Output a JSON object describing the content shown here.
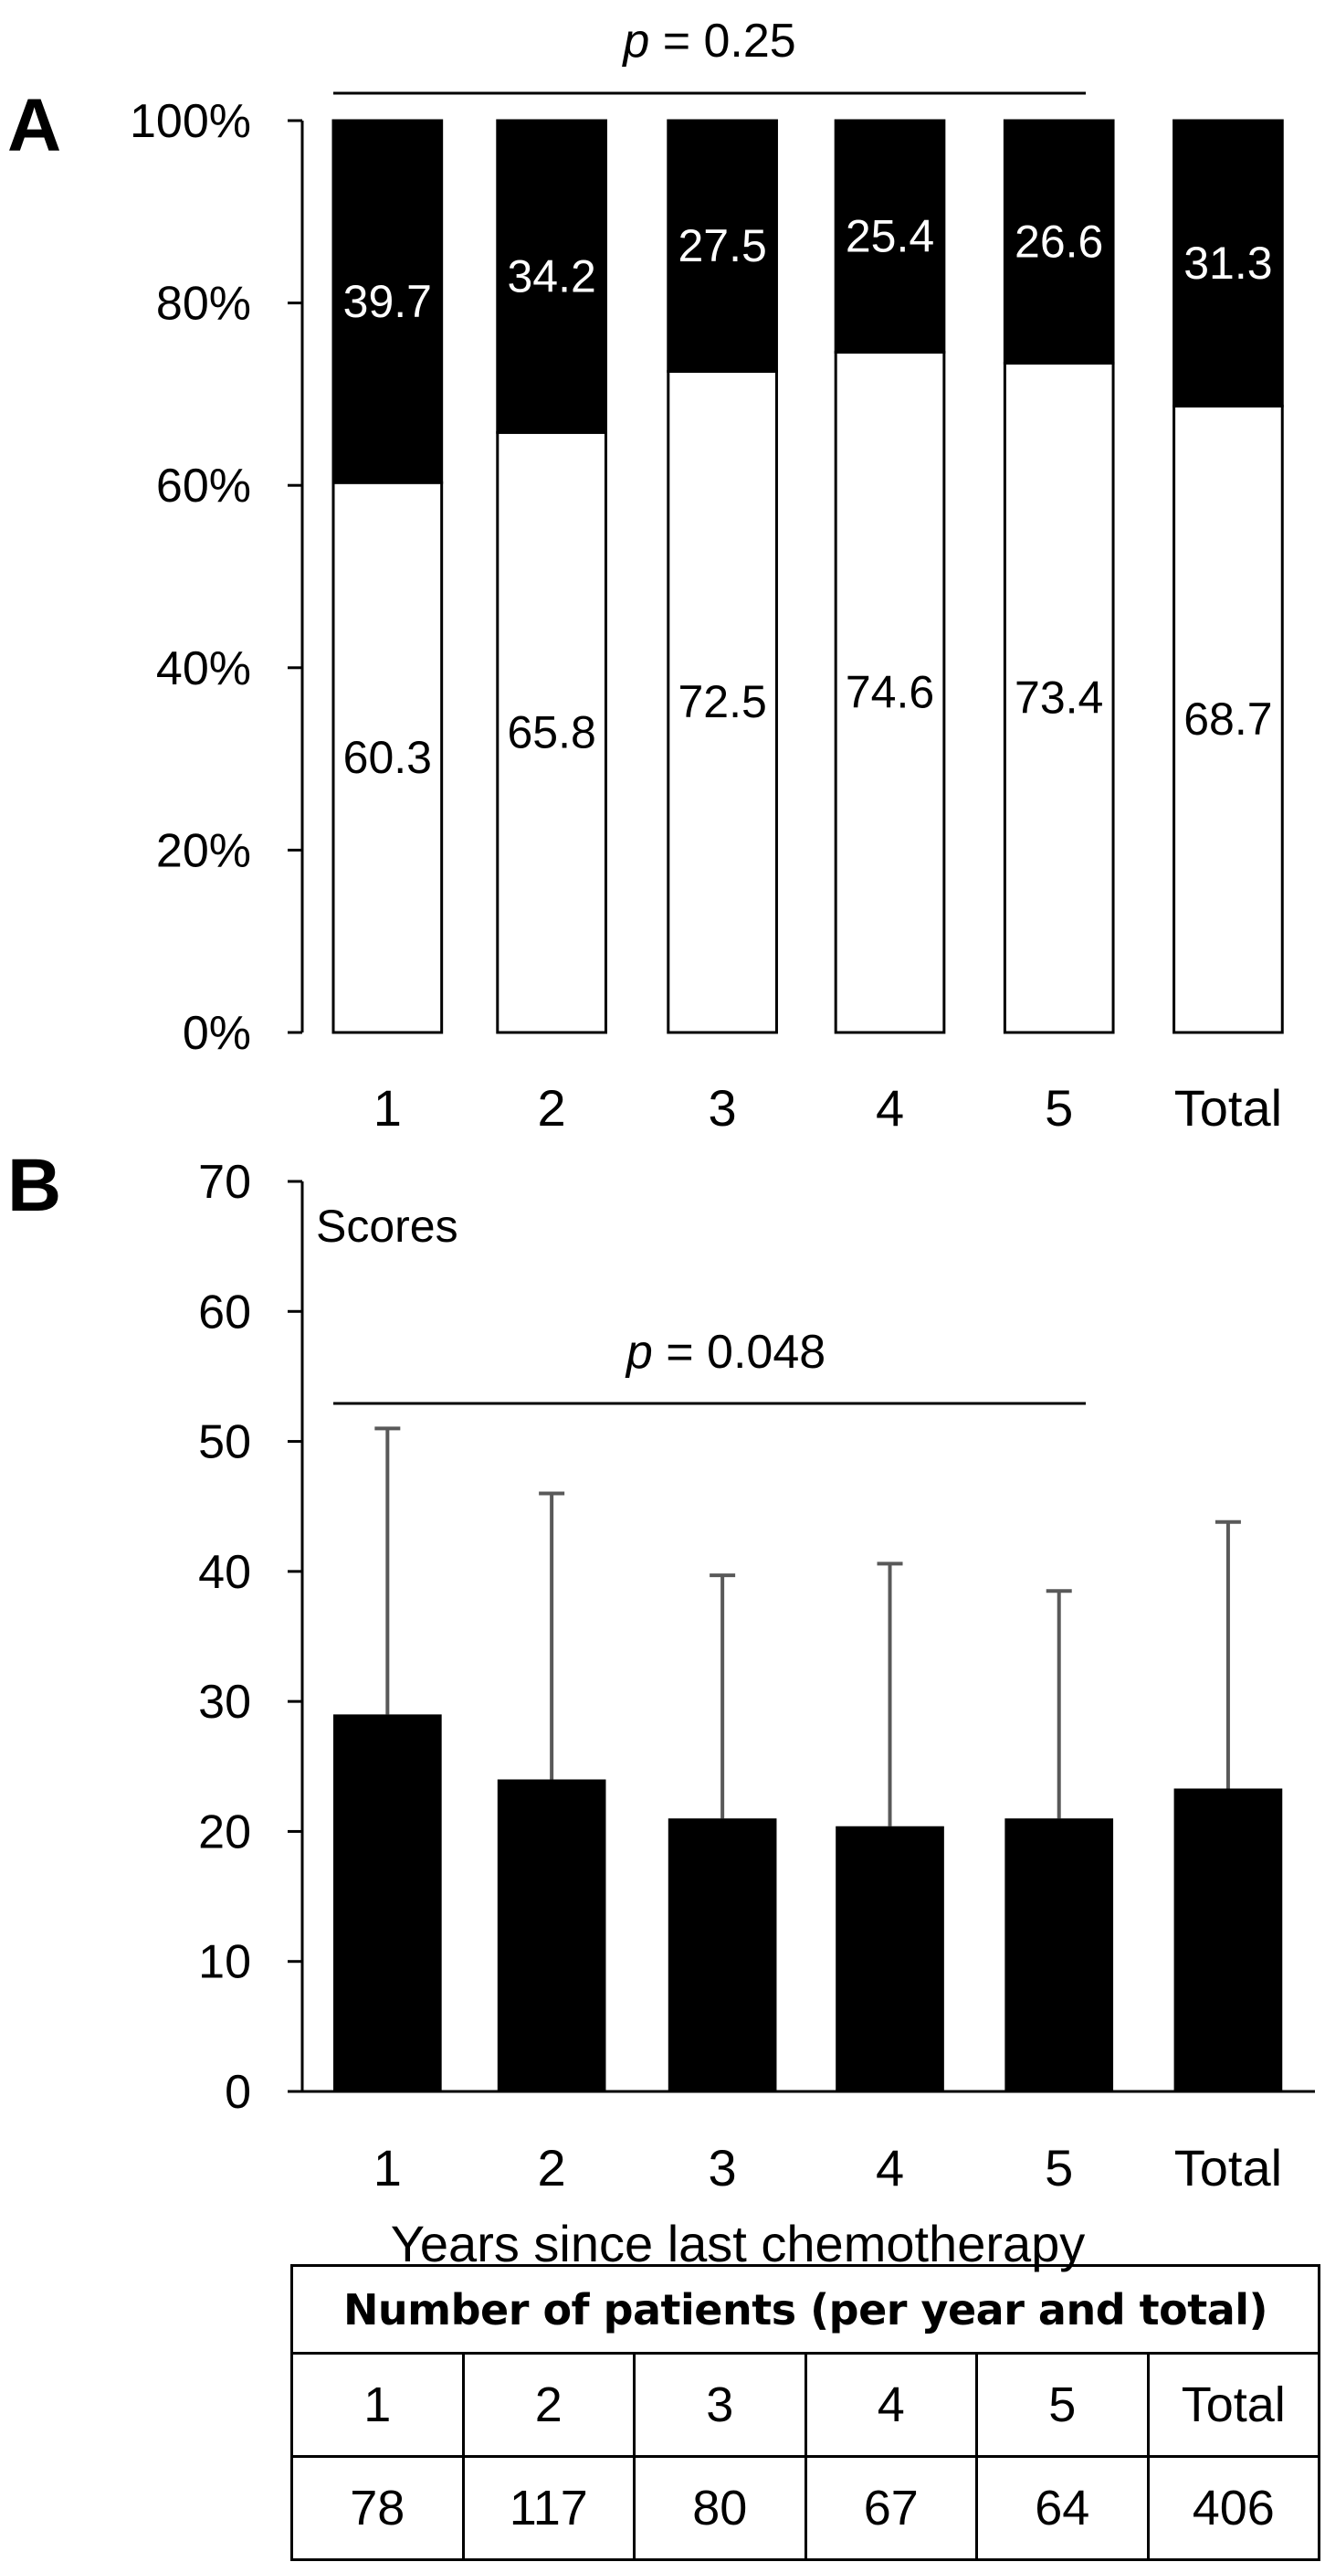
{
  "panel_a": {
    "letter": "A"
  },
  "panel_b": {
    "letter": "B"
  },
  "chart_data": [
    {
      "type": "bar",
      "stacked": true,
      "categories": [
        "1",
        "2",
        "3",
        "4",
        "5",
        "Total"
      ],
      "series": [
        {
          "name": "lower (white)",
          "color": "#ffffff",
          "values": [
            60.3,
            65.8,
            72.5,
            74.6,
            73.4,
            68.7
          ],
          "labels": [
            "60.3",
            "65.8",
            "72.5",
            "74.6",
            "73.4",
            "68.7"
          ]
        },
        {
          "name": "upper (black)",
          "color": "#000000",
          "values": [
            39.7,
            34.2,
            27.5,
            25.4,
            26.6,
            31.3
          ],
          "labels": [
            "39.7",
            "34.2",
            "27.5",
            "25.4",
            "26.6",
            "31.3"
          ]
        }
      ],
      "ylim": [
        0,
        100
      ],
      "yticks": [
        "0%",
        "20%",
        "40%",
        "60%",
        "80%",
        "100%"
      ],
      "title": "",
      "xlabel": "",
      "ylabel": "",
      "annotation": {
        "p_symbol": "p",
        "p_text": " = 0.25",
        "from_category": "1",
        "to_category": "5"
      }
    },
    {
      "type": "bar",
      "categories": [
        "1",
        "2",
        "3",
        "4",
        "5",
        "Total"
      ],
      "values": [
        29,
        24,
        21,
        20.4,
        21,
        23.3
      ],
      "error_upper": [
        22,
        22,
        18.7,
        20.2,
        17.5,
        20.5
      ],
      "ylim": [
        0,
        70
      ],
      "yticks": [
        "0",
        "10",
        "20",
        "30",
        "40",
        "50",
        "60",
        "70"
      ],
      "ylabel": "Scores",
      "xlabel": "Years since last chemotherapy",
      "annotation": {
        "p_symbol": "p",
        "p_text": " = 0.048",
        "from_category": "1",
        "to_category": "5"
      },
      "bar_color": "#000000",
      "error_color": "#595959"
    }
  ],
  "table": {
    "title": "Number of patients (per year and total)",
    "headers": [
      "1",
      "2",
      "3",
      "4",
      "5",
      "Total"
    ],
    "values": [
      "78",
      "117",
      "80",
      "67",
      "64",
      "406"
    ]
  }
}
